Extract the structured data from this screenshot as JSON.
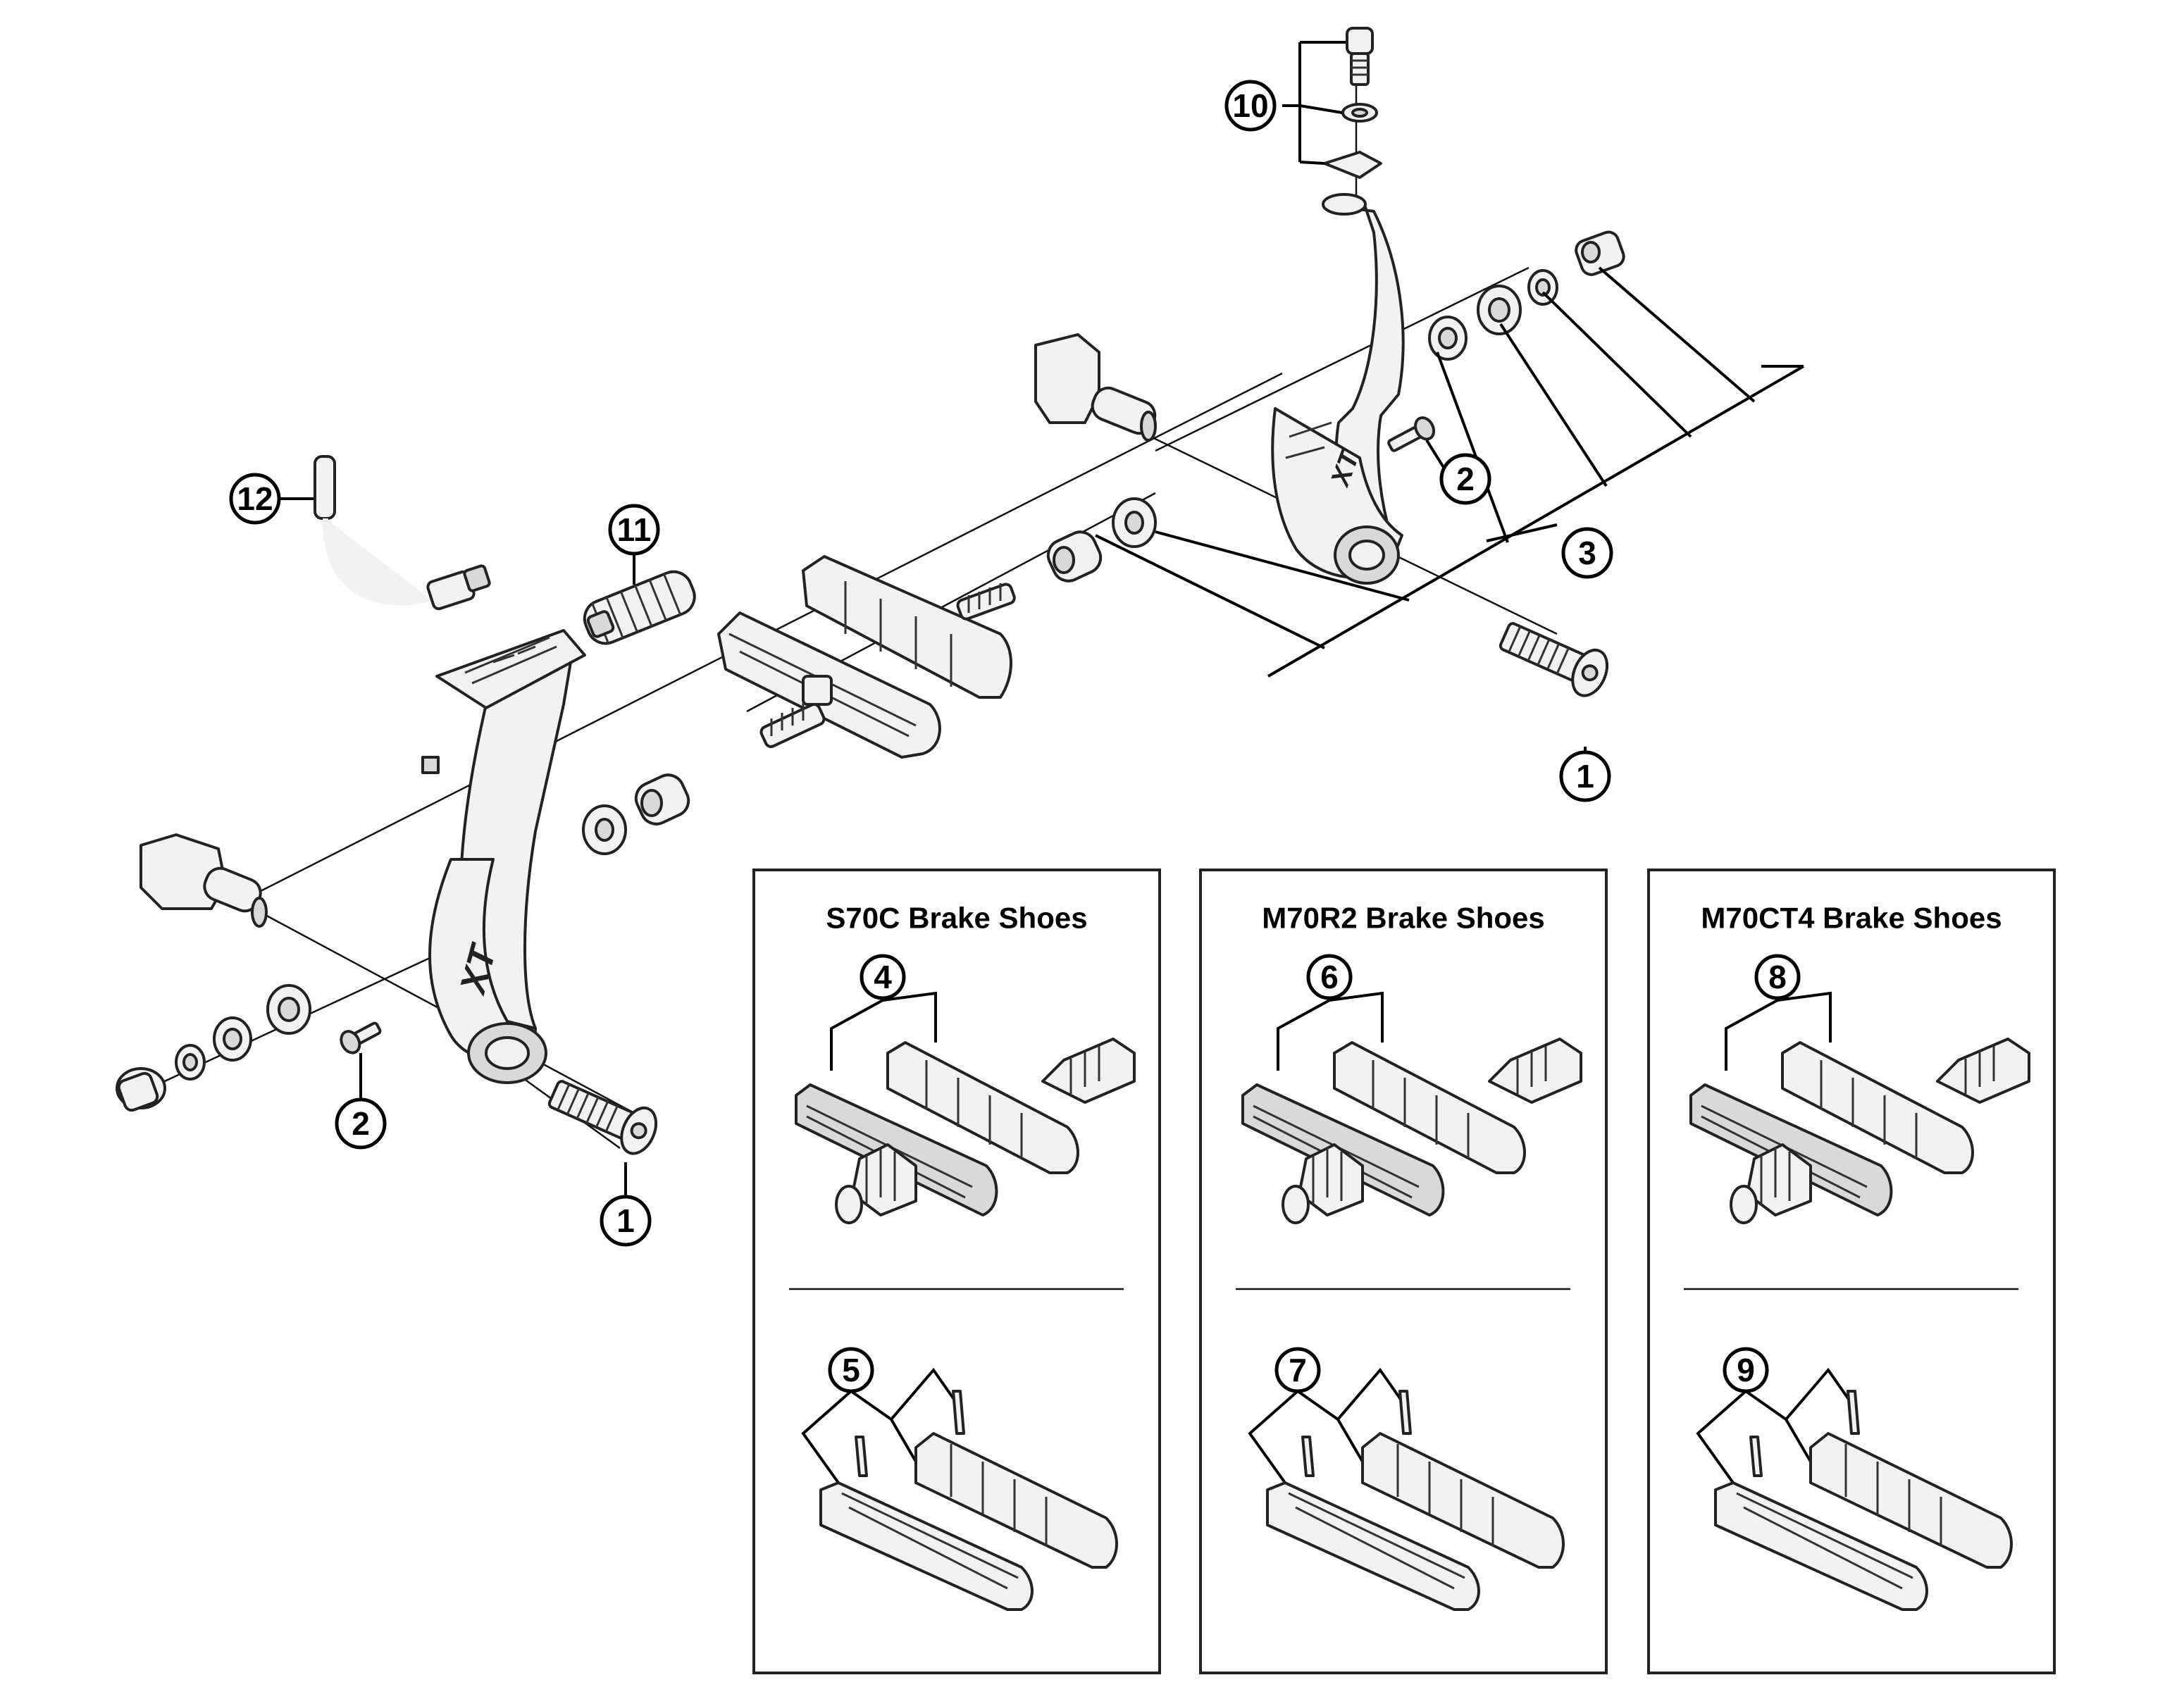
{
  "callouts": {
    "c1a": "1",
    "c1b": "1",
    "c2a": "2",
    "c2b": "2",
    "c3": "3",
    "c4": "4",
    "c5": "5",
    "c6": "6",
    "c7": "7",
    "c8": "8",
    "c9": "9",
    "c10": "10",
    "c11": "11",
    "c12": "12"
  },
  "panels": {
    "s70c": {
      "title": "S70C Brake Shoes"
    },
    "m70r2": {
      "title": "M70R2 Brake Shoes"
    },
    "m70ct4": {
      "title": "M70CT4 Brake Shoes"
    }
  },
  "arm_logo": "XT",
  "icons": {
    "part_style": "line-art",
    "colors": {
      "line": "#222222",
      "fill": "#f2f2f2",
      "background": "#ffffff"
    }
  }
}
